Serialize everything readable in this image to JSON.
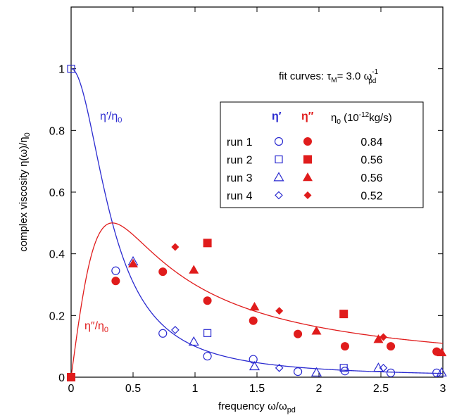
{
  "chart_data": {
    "type": "scatter",
    "xlabel": {
      "main": "frequency  ω/ω",
      "sub": "pd"
    },
    "ylabel": {
      "main": "complex viscosity  η(ω)/η",
      "sub": "0"
    },
    "xlim": [
      0,
      3
    ],
    "ylim": [
      0,
      1.2
    ],
    "x_ticks": [
      "0",
      "0.5",
      "1",
      "1.5",
      "2",
      "2.5",
      "3"
    ],
    "x_tick_values": [
      0,
      0.5,
      1,
      1.5,
      2,
      2.5,
      3
    ],
    "y_ticks": [
      "0",
      "0.2",
      "0.4",
      "0.6",
      "0.8",
      "1"
    ],
    "y_tick_values": [
      0,
      0.2,
      0.4,
      0.6,
      0.8,
      1.0
    ],
    "grid": false,
    "fit_note": {
      "main": "fit curves: τ",
      "sub1": "M",
      "mid": "= 3.0 ω",
      "sup": "-1",
      "sub2": "pd"
    },
    "fit_tau": 3.0,
    "curve_labels": {
      "real": {
        "main": "η′/η",
        "sub": "0"
      },
      "imag": {
        "main": "η″/η",
        "sub": "0"
      }
    },
    "legend": {
      "placement": "upper-right",
      "header_real": "η′",
      "header_imag": "η″",
      "header_eta0": {
        "main": "η",
        "sub": "0",
        "mid": " (10",
        "sup": "-12",
        "tail": "kg/s)"
      },
      "rows": [
        {
          "label": "run 1",
          "marker": "circle",
          "eta0": "0.84"
        },
        {
          "label": "run 2",
          "marker": "square",
          "eta0": "0.56"
        },
        {
          "label": "run 3",
          "marker": "triangle",
          "eta0": "0.56"
        },
        {
          "label": "run 4",
          "marker": "diamond",
          "eta0": "0.52"
        }
      ]
    },
    "colors": {
      "real": "#2b2bd0",
      "imag": "#e01c1c",
      "axis": "#000000"
    },
    "series": [
      {
        "name": "run 1",
        "component": "real",
        "marker": "circle",
        "x": [
          0.36,
          0.74,
          1.1,
          1.47,
          1.83,
          2.21,
          2.58,
          2.95
        ],
        "y": [
          0.345,
          0.142,
          0.068,
          0.058,
          0.018,
          0.02,
          0.014,
          0.014
        ]
      },
      {
        "name": "run 1",
        "component": "imag",
        "marker": "circle",
        "x": [
          0.36,
          0.74,
          1.1,
          1.47,
          1.83,
          2.21,
          2.58,
          2.95
        ],
        "y": [
          0.312,
          0.342,
          0.248,
          0.183,
          0.14,
          0.1,
          0.1,
          0.083
        ]
      },
      {
        "name": "run 2",
        "component": "real",
        "marker": "square",
        "x": [
          0.0,
          1.1,
          2.2
        ],
        "y": [
          1.0,
          0.143,
          0.03
        ]
      },
      {
        "name": "run 2",
        "component": "imag",
        "marker": "square",
        "x": [
          0.0,
          1.1,
          2.2
        ],
        "y": [
          0.0,
          0.435,
          0.205
        ]
      },
      {
        "name": "run 3",
        "component": "real",
        "marker": "triangle",
        "x": [
          0.5,
          0.99,
          1.48,
          1.98,
          2.48,
          2.99
        ],
        "y": [
          0.375,
          0.115,
          0.035,
          0.015,
          0.03,
          0.015
        ]
      },
      {
        "name": "run 3",
        "component": "imag",
        "marker": "triangle",
        "x": [
          0.5,
          0.99,
          1.48,
          1.98,
          2.48,
          2.99
        ],
        "y": [
          0.368,
          0.348,
          0.228,
          0.15,
          0.123,
          0.08
        ]
      },
      {
        "name": "run 4",
        "component": "real",
        "marker": "diamond",
        "x": [
          0.84,
          1.68,
          2.52
        ],
        "y": [
          0.153,
          0.03,
          0.03
        ]
      },
      {
        "name": "run 4",
        "component": "imag",
        "marker": "diamond",
        "x": [
          0.84,
          1.68,
          2.52
        ],
        "y": [
          0.422,
          0.215,
          0.13
        ]
      }
    ]
  }
}
